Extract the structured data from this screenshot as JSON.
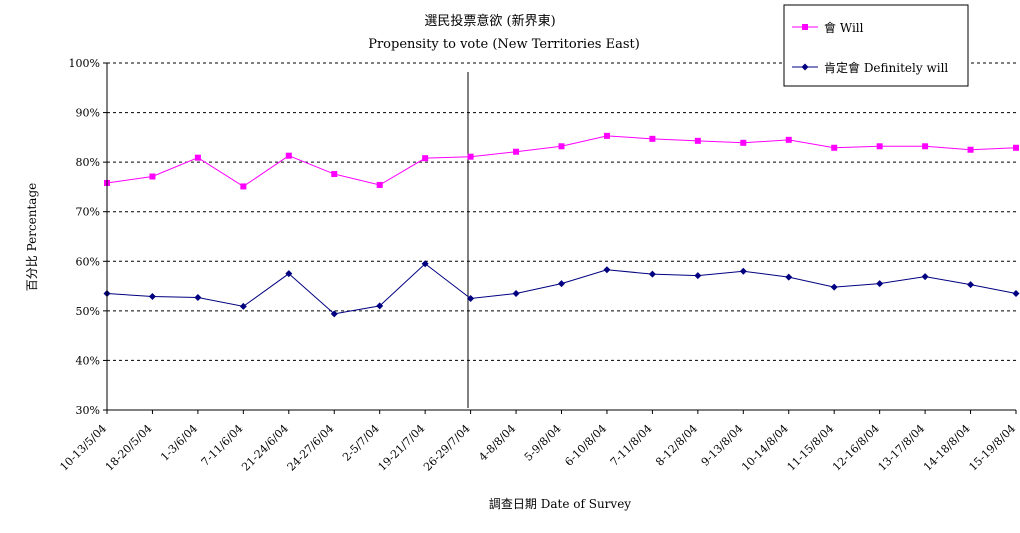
{
  "chart_data": {
    "type": "line",
    "title": "選民投票意欲 (新界東)",
    "subtitle": "Propensity to vote (New Territories East)",
    "xlabel": "調查日期 Date of Survey",
    "ylabel": "百分比 Percentage",
    "ylim": [
      30,
      100
    ],
    "yticks": [
      "30%",
      "40%",
      "50%",
      "60%",
      "70%",
      "80%",
      "90%",
      "100%"
    ],
    "grid": "horizontal dashed",
    "legend_position": "top-right",
    "categories": [
      "10-13/5/04",
      "18-20/5/04",
      "1-3/6/04",
      "7-11/6/04",
      "21-24/6/04",
      "24-27/6/04",
      "2-5/7/04",
      "19-21/7/04",
      "26-29/7/04",
      "4-8/8/04",
      "5-9/8/04",
      "6-10/8/04",
      "7-11/8/04",
      "8-12/8/04",
      "9-13/8/04",
      "10-14/8/04",
      "11-15/8/04",
      "12-16/8/04",
      "13-17/8/04",
      "14-18/8/04",
      "15-19/8/04"
    ],
    "series": [
      {
        "name": "會 Will",
        "color": "#FF00FF",
        "marker": "square",
        "values": [
          75.8,
          77.1,
          80.9,
          75.1,
          81.3,
          77.6,
          75.4,
          80.8,
          81.1,
          82.1,
          83.2,
          85.3,
          84.7,
          84.3,
          83.9,
          84.5,
          82.9,
          83.2,
          83.2,
          82.5,
          82.9
        ]
      },
      {
        "name": "肯定會 Definitely will",
        "color": "#000080",
        "marker": "diamond",
        "values": [
          53.5,
          52.9,
          52.7,
          50.9,
          57.5,
          49.4,
          51.0,
          59.5,
          52.5,
          53.5,
          55.5,
          58.3,
          57.4,
          57.1,
          58.0,
          56.8,
          54.8,
          55.5,
          56.9,
          55.3,
          53.5
        ]
      }
    ]
  }
}
